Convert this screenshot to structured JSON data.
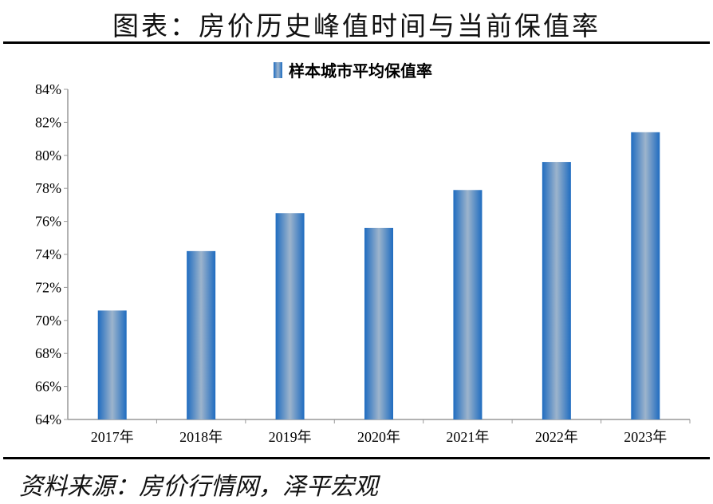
{
  "header": {
    "title": "图表：房价历史峰值时间与当前保值率"
  },
  "footer": {
    "source": "资料来源：房价行情网，泽平宏观"
  },
  "chart_data": {
    "type": "bar",
    "categories": [
      "2017年",
      "2018年",
      "2019年",
      "2020年",
      "2021年",
      "2022年",
      "2023年"
    ],
    "series": [
      {
        "name": "样本城市平均保值率",
        "values": [
          70.6,
          74.2,
          76.5,
          75.6,
          77.9,
          79.6,
          81.4
        ]
      }
    ],
    "ylim": [
      64,
      84
    ],
    "yticks": [
      "64%",
      "66%",
      "68%",
      "70%",
      "72%",
      "74%",
      "76%",
      "78%",
      "80%",
      "82%",
      "84%"
    ],
    "legend_position": "top",
    "grid": false,
    "colors": {
      "bar_edge": "#1f6cc0",
      "bar_center": "#9db4cc"
    }
  }
}
